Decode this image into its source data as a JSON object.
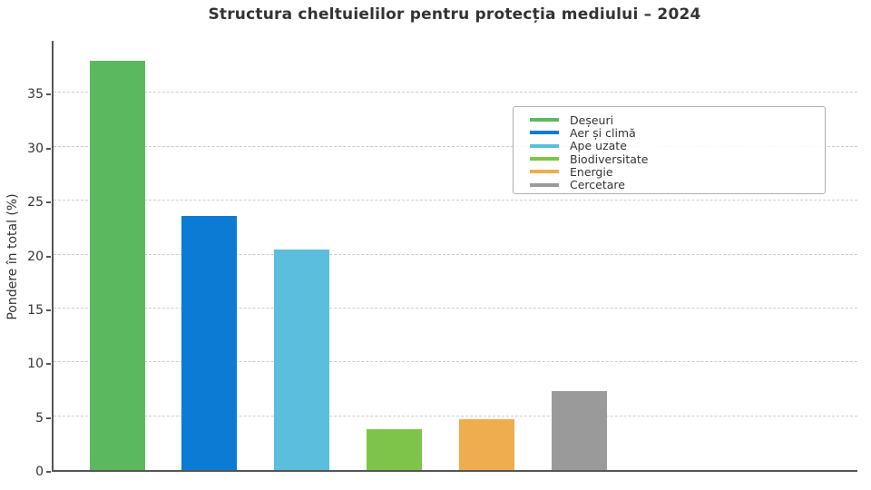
{
  "chart_data": {
    "type": "bar",
    "title": "Structura cheltuielilor pentru protecția mediului – 2024",
    "ylabel": "Pondere în total (%)",
    "xlabel": "",
    "categories": [
      "Deșeuri",
      "Aer și climă",
      "Ape uzate",
      "Biodiversitate",
      "Energie",
      "Cercetare"
    ],
    "values": [
      38.0,
      23.6,
      20.5,
      3.8,
      4.7,
      7.3
    ],
    "bar_colors": [
      "#5cb85f",
      "#0b7bd4",
      "#5abedc",
      "#7ec34a",
      "#eead4f",
      "#9a9a9a"
    ],
    "ylim": [
      0,
      40
    ],
    "yticks": [
      0,
      5,
      10,
      15,
      20,
      25,
      30,
      35
    ],
    "x_tick_labels": "none",
    "grid": {
      "axis": "y",
      "style": "dashed",
      "color": "#cccccc"
    },
    "legend": {
      "position": "upper right inside",
      "entries": [
        "Deșeuri",
        "Aer și climă",
        "Ape uzate",
        "Biodiversitate",
        "Energie",
        "Cercetare"
      ]
    },
    "style": {
      "axis_color": "#555555",
      "text_color": "#333333",
      "background": "#ffffff"
    }
  }
}
